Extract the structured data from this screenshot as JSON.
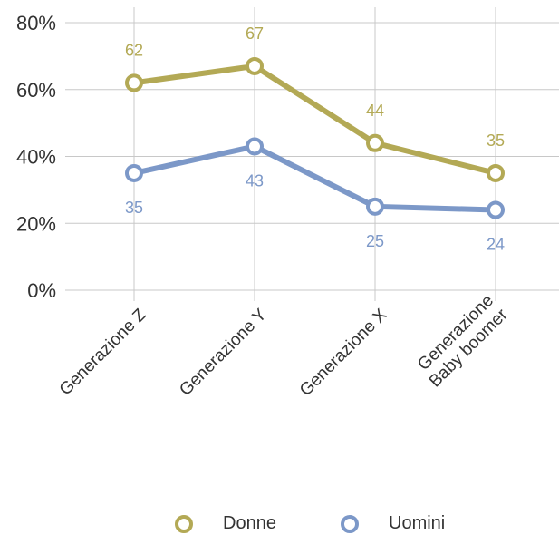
{
  "chart_data": {
    "type": "line",
    "categories": [
      [
        "Generazione Z"
      ],
      [
        "Generazione Y"
      ],
      [
        "Generazione X"
      ],
      [
        "Generazione",
        "Baby boomer"
      ]
    ],
    "series": [
      {
        "name": "Donne",
        "values": [
          62,
          67,
          44,
          35
        ],
        "color": "#b3a955",
        "labels": [
          "62",
          "67",
          "44",
          "35"
        ]
      },
      {
        "name": "Uomini",
        "values": [
          35,
          43,
          25,
          24
        ],
        "color": "#7c98c8",
        "labels": [
          "35",
          "43",
          "25",
          "24"
        ]
      }
    ],
    "y_ticks": [
      "0%",
      "20%",
      "40%",
      "60%",
      "80%"
    ],
    "ylim": [
      0,
      80
    ],
    "grid": true,
    "legend_position": "bottom-center"
  }
}
